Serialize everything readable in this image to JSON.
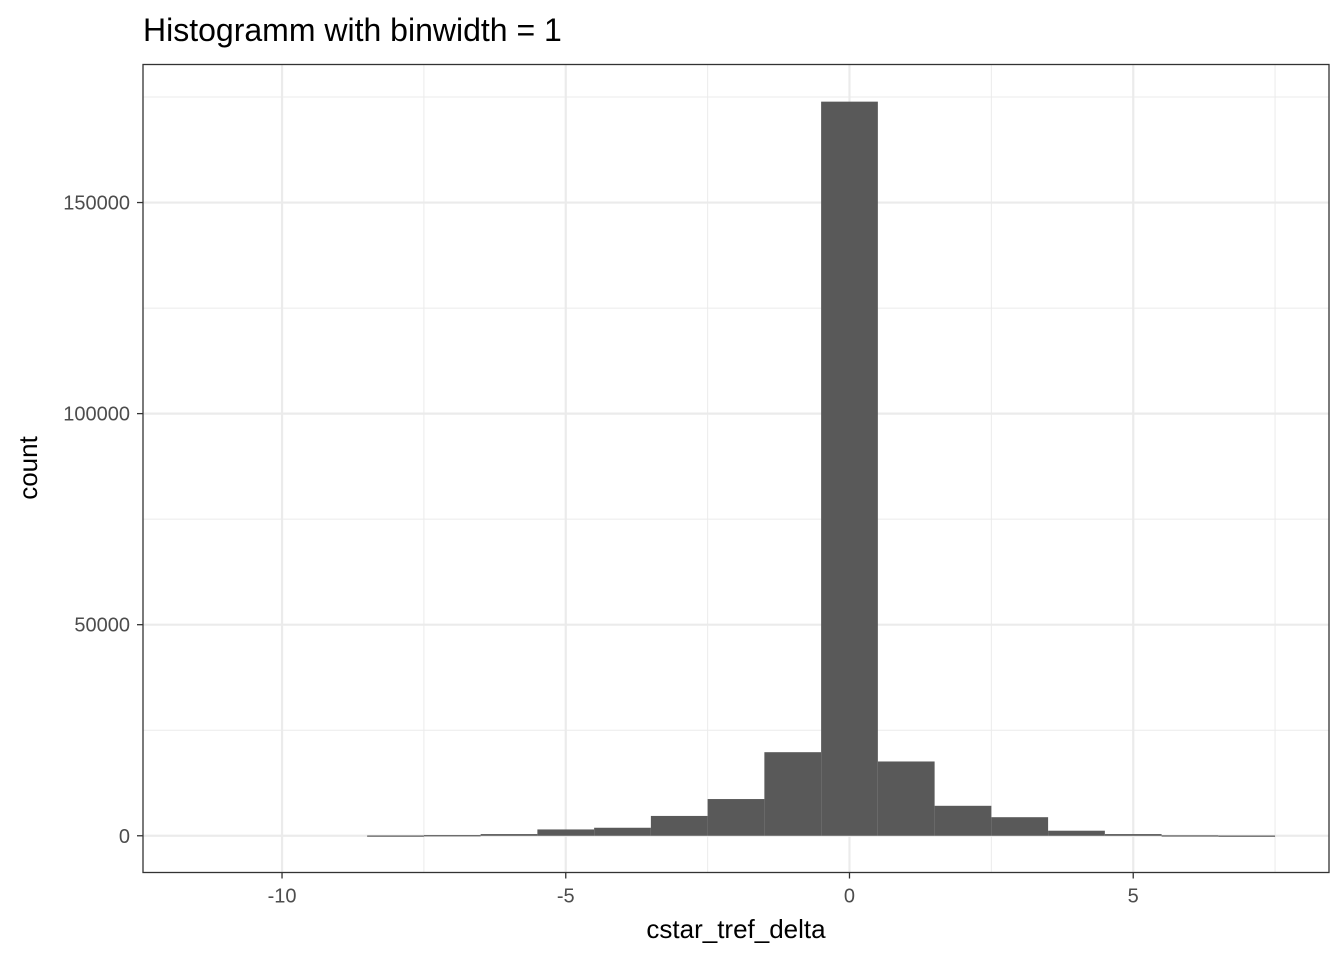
{
  "chart_data": {
    "type": "histogram",
    "title": "Histogramm with binwidth = 1",
    "xlabel": "cstar_tref_delta",
    "ylabel": "count",
    "xlim": [
      -12.45,
      8.45
    ],
    "ylim": [
      -8700,
      182700
    ],
    "binwidth": 1,
    "x_ticks": [
      -10,
      -5,
      0,
      5
    ],
    "x_tick_labels": [
      "-10",
      "-5",
      "0",
      "5"
    ],
    "y_ticks": [
      0,
      50000,
      100000,
      150000
    ],
    "y_tick_labels": [
      "0",
      "50000",
      "100000",
      "150000"
    ],
    "bins": [
      {
        "x": -8,
        "count": 60
      },
      {
        "x": -7,
        "count": 150
      },
      {
        "x": -6,
        "count": 400
      },
      {
        "x": -5,
        "count": 1500
      },
      {
        "x": -4,
        "count": 1900
      },
      {
        "x": -3,
        "count": 4700
      },
      {
        "x": -2,
        "count": 8700
      },
      {
        "x": -1,
        "count": 19800
      },
      {
        "x": 0,
        "count": 173900
      },
      {
        "x": 1,
        "count": 17600
      },
      {
        "x": 2,
        "count": 7100
      },
      {
        "x": 3,
        "count": 4400
      },
      {
        "x": 4,
        "count": 1200
      },
      {
        "x": 5,
        "count": 400
      },
      {
        "x": 6,
        "count": 100
      },
      {
        "x": 7,
        "count": 50
      }
    ],
    "grid": true,
    "bar_color": "#595959",
    "grid_color": "#ebebeb",
    "panel_border_color": "#333333"
  }
}
